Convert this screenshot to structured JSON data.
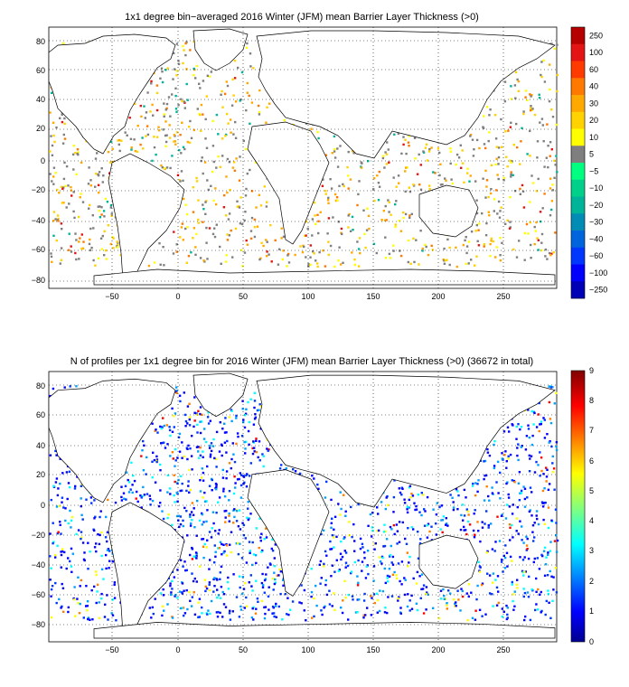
{
  "figure": {
    "panels": [
      {
        "id": "blt-mean",
        "title": "1x1 degree bin−averaged 2016 Winter (JFM) mean Barrier Layer Thickness (>0)",
        "x_ticks": [
          "−50",
          "0",
          "50",
          "100",
          "150",
          "200",
          "250"
        ],
        "y_ticks": [
          "80",
          "60",
          "40",
          "20",
          "0",
          "−20",
          "−40",
          "−60",
          "−80"
        ],
        "colorbar": {
          "labels": [
            "250",
            "100",
            "60",
            "40",
            "30",
            "20",
            "10",
            "5",
            "−5",
            "−10",
            "−20",
            "−30",
            "−40",
            "−60",
            "−100",
            "−250"
          ],
          "colors": [
            "#b40000",
            "#e41414",
            "#ff3b00",
            "#ff7800",
            "#ffa800",
            "#ffd200",
            "#ffff00",
            "#7f7f7f",
            "#00ff80",
            "#00d08a",
            "#00b49a",
            "#008cb4",
            "#0064dc",
            "#0037ff",
            "#0000ff",
            "#0000b4"
          ]
        }
      },
      {
        "id": "profile-count",
        "title": "N of profiles per 1x1 degree bin for 2016 Winter (JFM) mean Barrier Layer Thickness (>0) (36672 in total)",
        "x_ticks": [
          "−50",
          "0",
          "50",
          "100",
          "150",
          "200",
          "250"
        ],
        "y_ticks": [
          "80",
          "60",
          "40",
          "20",
          "0",
          "−20",
          "−40",
          "−60",
          "−80"
        ],
        "colorbar": {
          "labels": [
            "9",
            "8",
            "7",
            "6",
            "5",
            "4",
            "3",
            "2",
            "1",
            "0"
          ],
          "colormap": "jet"
        }
      }
    ]
  },
  "chart_data": [
    {
      "type": "heatmap",
      "title": "1x1 degree bin−averaged 2016 Winter (JFM) mean Barrier Layer Thickness (>0)",
      "xlabel": "",
      "ylabel": "",
      "xlim": [
        -90,
        290
      ],
      "ylim": [
        -90,
        90
      ],
      "x_ticks": [
        -50,
        0,
        50,
        100,
        150,
        200,
        250
      ],
      "y_ticks": [
        80,
        60,
        40,
        20,
        0,
        -20,
        -40,
        -60,
        -80
      ],
      "grid": true,
      "colorbar_levels": [
        250,
        100,
        60,
        40,
        30,
        20,
        10,
        5,
        -5,
        -10,
        -20,
        -30,
        -40,
        -60,
        -100,
        -250
      ]
    },
    {
      "type": "heatmap",
      "title": "N of profiles per 1x1 degree bin for 2016 Winter (JFM) mean Barrier Layer Thickness (>0) (36672 in total)",
      "xlabel": "",
      "ylabel": "",
      "xlim": [
        -90,
        290
      ],
      "ylim": [
        -90,
        90
      ],
      "x_ticks": [
        -50,
        0,
        50,
        100,
        150,
        200,
        250
      ],
      "y_ticks": [
        80,
        60,
        40,
        20,
        0,
        -20,
        -40,
        -60,
        -80
      ],
      "grid": true,
      "total_profiles": 36672,
      "colorbar_range": [
        0,
        9
      ]
    }
  ]
}
